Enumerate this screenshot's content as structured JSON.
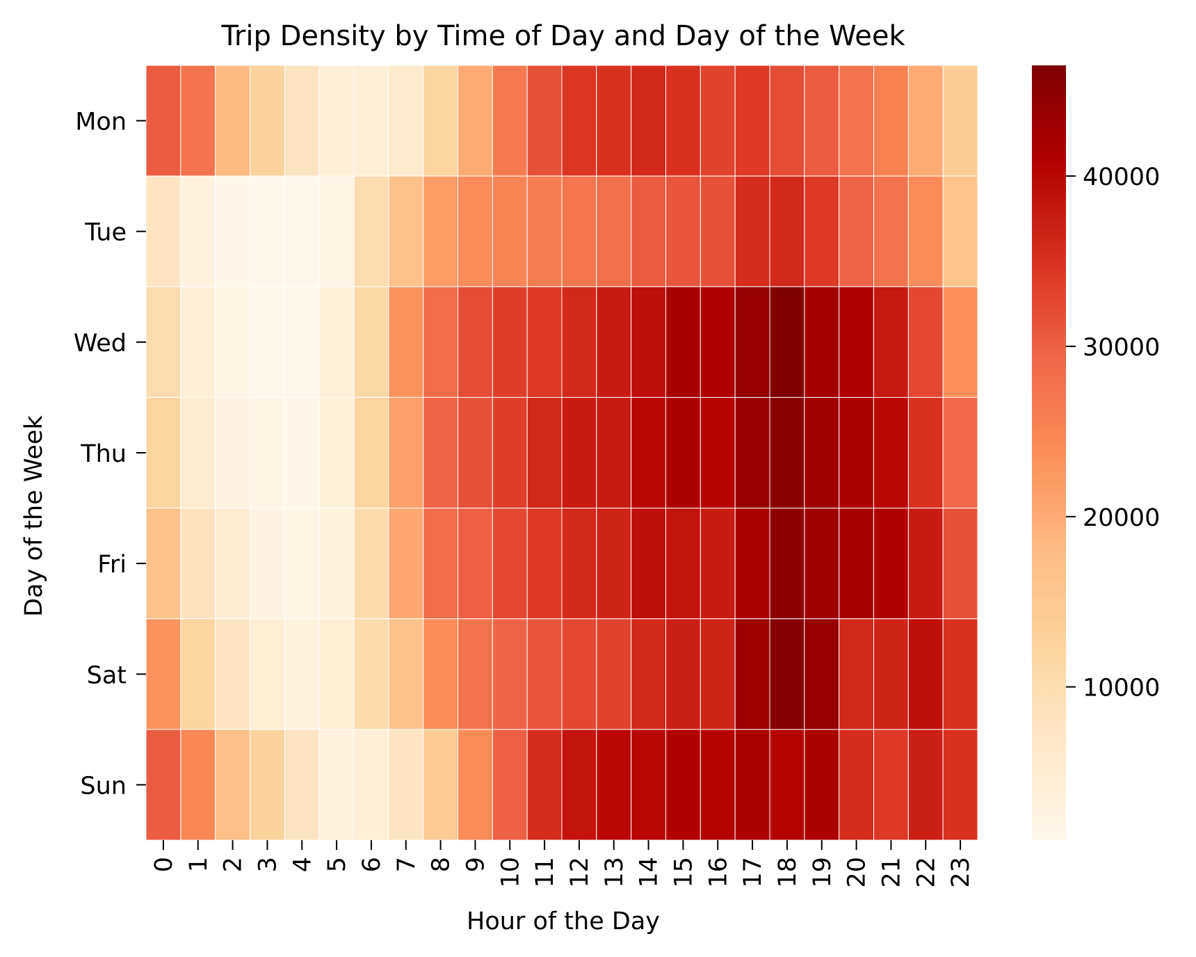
{
  "chart_data": {
    "type": "heatmap",
    "title": "Trip Density by Time of Day and Day of the Week",
    "xlabel": "Hour of the Day",
    "ylabel": "Day of the Week",
    "x_categories": [
      "0",
      "1",
      "2",
      "3",
      "4",
      "5",
      "6",
      "7",
      "8",
      "9",
      "10",
      "11",
      "12",
      "13",
      "14",
      "15",
      "16",
      "17",
      "18",
      "19",
      "20",
      "21",
      "22",
      "23"
    ],
    "y_categories": [
      "Mon",
      "Tue",
      "Wed",
      "Thu",
      "Fri",
      "Sat",
      "Sun"
    ],
    "values": [
      [
        30500,
        27500,
        18000,
        12500,
        7500,
        4000,
        4000,
        6000,
        12000,
        20000,
        26500,
        31500,
        34500,
        35000,
        36000,
        35000,
        33000,
        34000,
        32000,
        30500,
        27500,
        25500,
        20000,
        14000
      ],
      [
        7500,
        3000,
        1500,
        1000,
        1000,
        2000,
        10000,
        16500,
        22000,
        24000,
        25000,
        26000,
        27000,
        28000,
        30500,
        31000,
        31500,
        35500,
        36000,
        34000,
        29500,
        27500,
        24000,
        16000
      ],
      [
        10000,
        4000,
        2000,
        1000,
        1000,
        3500,
        11000,
        23000,
        28500,
        32000,
        33500,
        34000,
        36000,
        37500,
        39000,
        42000,
        41000,
        44000,
        46500,
        42500,
        41000,
        38000,
        32500,
        23500
      ],
      [
        12000,
        5000,
        2500,
        2000,
        1500,
        3500,
        12000,
        21500,
        29500,
        31500,
        33500,
        36000,
        37500,
        37500,
        40000,
        41500,
        40500,
        43500,
        45500,
        43000,
        41500,
        40000,
        35000,
        29000
      ],
      [
        16500,
        8000,
        5000,
        2500,
        2000,
        3000,
        10500,
        20500,
        28500,
        30000,
        32500,
        34000,
        36000,
        36500,
        39000,
        38500,
        37500,
        41500,
        45000,
        43000,
        42000,
        41000,
        37500,
        31500
      ],
      [
        23000,
        12000,
        7500,
        4500,
        3000,
        4500,
        10500,
        16500,
        24000,
        27500,
        29500,
        31000,
        32500,
        33000,
        36000,
        37000,
        36500,
        43000,
        46000,
        44000,
        36000,
        36500,
        39000,
        35000
      ],
      [
        30500,
        24500,
        17000,
        12500,
        7500,
        3000,
        4000,
        7500,
        14500,
        24000,
        30000,
        35500,
        38500,
        40000,
        40000,
        41000,
        40500,
        41500,
        40500,
        41500,
        35500,
        34000,
        37000,
        35000
      ]
    ],
    "colorbar": {
      "range": [
        1000,
        46500
      ],
      "ticks": [
        10000,
        20000,
        30000,
        40000
      ]
    },
    "colormap": "OrRd",
    "colors": [
      "#fff7ec",
      "#fee8c8",
      "#fdd49e",
      "#fdbb84",
      "#fc8d59",
      "#ef6548",
      "#d7301f",
      "#b30000",
      "#7f0000"
    ],
    "grid": true,
    "legend": "colorbar-right"
  }
}
